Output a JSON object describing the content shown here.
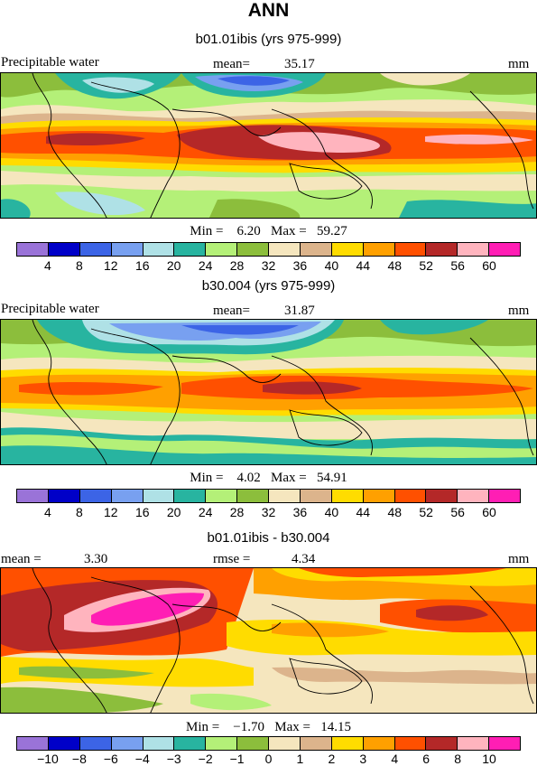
{
  "title": "ANN",
  "units": "mm",
  "panels": [
    {
      "title": "b01.01ibis (yrs 975-999)",
      "left_label": "Precipitable water",
      "stat_label": "mean=",
      "stat_value": "35.17",
      "min_label": "Min =",
      "min_value": "6.20",
      "max_label": "Max =",
      "max_value": "59.27",
      "colorbar": {
        "colors": [
          "#9a73d8",
          "#0000c8",
          "#3c64e6",
          "#78a0f0",
          "#afe1e6",
          "#28b4a0",
          "#b4f078",
          "#8cbe3c",
          "#f5e6be",
          "#dcb48c",
          "#ffdc00",
          "#ffa000",
          "#ff5000",
          "#b42828",
          "#ffb4be",
          "#ff1eb4"
        ],
        "ticks": [
          "4",
          "8",
          "12",
          "16",
          "20",
          "24",
          "28",
          "32",
          "36",
          "40",
          "44",
          "48",
          "52",
          "56",
          "60"
        ]
      }
    },
    {
      "title": "b30.004 (yrs 975-999)",
      "left_label": "Precipitable water",
      "stat_label": "mean=",
      "stat_value": "31.87",
      "min_label": "Min =",
      "min_value": "4.02",
      "max_label": "Max =",
      "max_value": "54.91",
      "colorbar": {
        "colors": [
          "#9a73d8",
          "#0000c8",
          "#3c64e6",
          "#78a0f0",
          "#afe1e6",
          "#28b4a0",
          "#b4f078",
          "#8cbe3c",
          "#f5e6be",
          "#dcb48c",
          "#ffdc00",
          "#ffa000",
          "#ff5000",
          "#b42828",
          "#ffb4be",
          "#ff1eb4"
        ],
        "ticks": [
          "4",
          "8",
          "12",
          "16",
          "20",
          "24",
          "28",
          "32",
          "36",
          "40",
          "44",
          "48",
          "52",
          "56",
          "60"
        ]
      }
    },
    {
      "title": "b01.01ibis - b30.004",
      "left_label": "mean =",
      "left_value": "3.30",
      "stat_label": "rmse =",
      "stat_value": "4.34",
      "min_label": "Min =",
      "min_value": "−1.70",
      "max_label": "Max =",
      "max_value": "14.15",
      "colorbar": {
        "colors": [
          "#9a73d8",
          "#0000c8",
          "#3c64e6",
          "#78a0f0",
          "#afe1e6",
          "#28b4a0",
          "#b4f078",
          "#8cbe3c",
          "#f5e6be",
          "#dcb48c",
          "#ffdc00",
          "#ffa000",
          "#ff5000",
          "#b42828",
          "#ffb4be",
          "#ff1eb4"
        ],
        "ticks": [
          "−10",
          "−8",
          "−6",
          "−4",
          "−3",
          "−2",
          "−1",
          "0",
          "1",
          "2",
          "3",
          "4",
          "6",
          "8",
          "10"
        ]
      }
    }
  ]
}
